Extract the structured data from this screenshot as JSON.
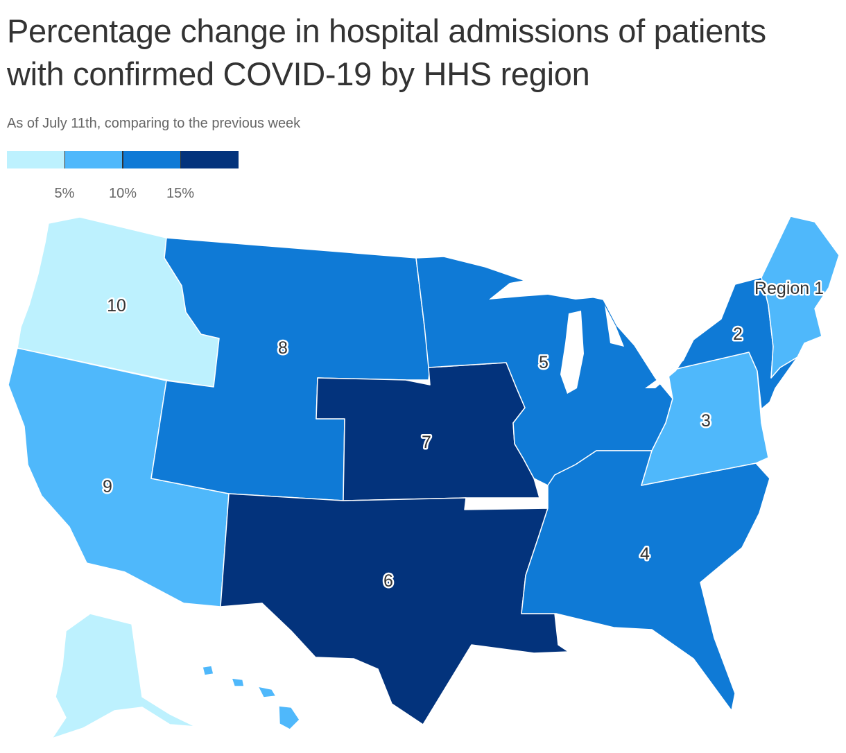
{
  "title": "Percentage change in hospital admissions of patients with confirmed COVID-19 by HHS region",
  "subtitle": "As of July 11th, comparing to the previous week",
  "legend": {
    "colors": [
      "#bdf1fe",
      "#4fb8fb",
      "#0f7ad6",
      "#03337c"
    ],
    "ticks": [
      "5%",
      "10%",
      "15%"
    ]
  },
  "regions": [
    {
      "label": "Region 1",
      "bin": 1
    },
    {
      "label": "2",
      "bin": 2
    },
    {
      "label": "3",
      "bin": 1
    },
    {
      "label": "4",
      "bin": 2
    },
    {
      "label": "5",
      "bin": 2
    },
    {
      "label": "6",
      "bin": 3
    },
    {
      "label": "7",
      "bin": 3
    },
    {
      "label": "8",
      "bin": 2
    },
    {
      "label": "9",
      "bin": 1
    },
    {
      "label": "10",
      "bin": 0
    }
  ]
}
